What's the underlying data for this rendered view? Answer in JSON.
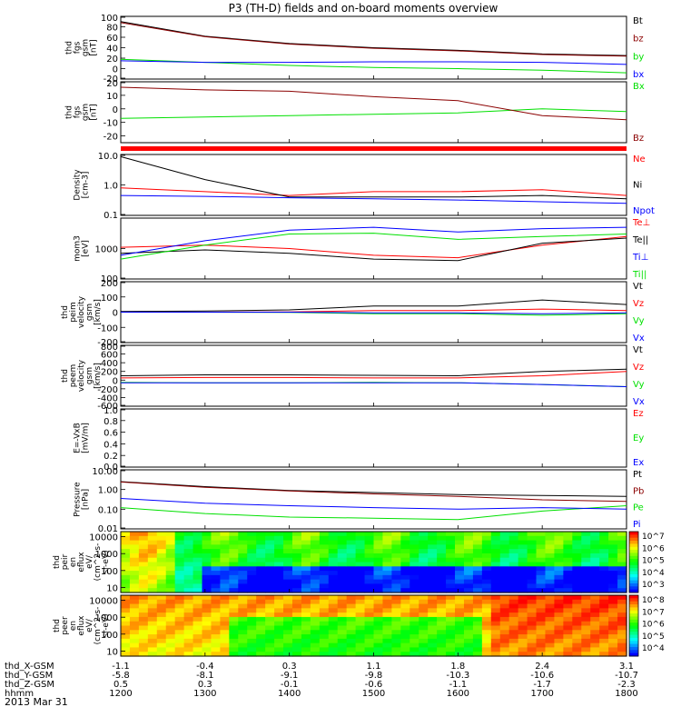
{
  "title": "P3 (TH-D) fields and on-board moments overview",
  "date_label": "2013 Mar 31",
  "bottom_axis": {
    "rows": [
      {
        "name": "thd_X-GSM",
        "values": [
          "-1.1",
          "-0.4",
          "0.3",
          "1.1",
          "1.8",
          "2.4",
          "3.1"
        ]
      },
      {
        "name": "thd_Y-GSM",
        "values": [
          "-5.8",
          "-8.1",
          "-9.1",
          "-9.8",
          "-10.3",
          "-10.6",
          "-10.7"
        ]
      },
      {
        "name": "thd_Z-GSM",
        "values": [
          "0.5",
          "0.3",
          "-0.1",
          "-0.6",
          "-1.1",
          "-1.7",
          "-2.3"
        ]
      },
      {
        "name": "hhmm",
        "values": [
          "1200",
          "1300",
          "1400",
          "1500",
          "1600",
          "1700",
          "1800"
        ]
      }
    ]
  },
  "colors": {
    "black": "#000000",
    "red": "#ff0000",
    "darkred": "#8b0000",
    "green": "#00e000",
    "blue": "#0000ff",
    "flag": "#ff0000"
  },
  "chart_data": [
    {
      "type": "line",
      "ylabel": "thd\nfgs\ngsm\n[nT]",
      "ylim": [
        -20,
        100
      ],
      "yticks": [
        "100",
        "80",
        "60",
        "40",
        "20",
        "0",
        "-20"
      ],
      "series": [
        {
          "name": "Bt",
          "color": "#000000",
          "x": [
            1200,
            1300,
            1400,
            1500,
            1600,
            1700,
            1800
          ],
          "values": [
            90,
            62,
            48,
            40,
            35,
            28,
            25
          ]
        },
        {
          "name": "bz",
          "color": "#8b0000",
          "x": [
            1200,
            1300,
            1400,
            1500,
            1600,
            1700,
            1800
          ],
          "values": [
            88,
            61,
            47,
            39,
            34,
            27,
            24
          ]
        },
        {
          "name": "by",
          "color": "#00e000",
          "x": [
            1200,
            1300,
            1400,
            1500,
            1600,
            1700,
            1800
          ],
          "values": [
            18,
            12,
            6,
            2,
            0,
            -3,
            -8
          ]
        },
        {
          "name": "bx",
          "color": "#0000ff",
          "x": [
            1200,
            1300,
            1400,
            1500,
            1600,
            1700,
            1800
          ],
          "values": [
            15,
            12,
            12,
            13,
            13,
            12,
            8
          ]
        }
      ]
    },
    {
      "type": "line",
      "ylabel": "thd\nfgs\ngsm\n[nT]",
      "ylim": [
        -25,
        20
      ],
      "yticks": [
        "20",
        "10",
        "0",
        "-10",
        "-20"
      ],
      "series": [
        {
          "name": "Bx",
          "color": "#00e000",
          "x": [
            1200,
            1300,
            1400,
            1500,
            1600,
            1700,
            1800
          ],
          "values": [
            -7,
            -6,
            -5,
            -4,
            -3,
            0,
            -2
          ]
        },
        {
          "name": "Bz",
          "color": "#8b0000",
          "x": [
            1200,
            1300,
            1400,
            1500,
            1600,
            1700,
            1800
          ],
          "values": [
            16,
            14,
            13,
            9,
            6,
            -5,
            -8
          ]
        }
      ]
    },
    {
      "type": "line",
      "ylabel": "Density\n[cm-3]",
      "ylim": [
        0.1,
        10
      ],
      "log": true,
      "yticks": [
        "10.0",
        "1.0",
        "0.1"
      ],
      "series": [
        {
          "name": "Ne",
          "color": "#ff0000",
          "x": [
            1200,
            1300,
            1400,
            1500,
            1600,
            1700,
            1800
          ],
          "values": [
            0.8,
            0.6,
            0.45,
            0.6,
            0.6,
            0.7,
            0.45
          ]
        },
        {
          "name": "Ni",
          "color": "#000000",
          "x": [
            1200,
            1300,
            1400,
            1500,
            1600,
            1700,
            1800
          ],
          "values": [
            8.5,
            1.5,
            0.4,
            0.4,
            0.4,
            0.45,
            0.35
          ]
        },
        {
          "name": "Npot",
          "color": "#0000ff",
          "x": [
            1200,
            1300,
            1400,
            1500,
            1600,
            1700,
            1800
          ],
          "values": [
            0.45,
            0.42,
            0.38,
            0.35,
            0.32,
            0.28,
            0.25
          ]
        }
      ]
    },
    {
      "type": "line",
      "ylabel": "mom3\n[eV]",
      "ylim": [
        100,
        10000
      ],
      "log": true,
      "yticks": [
        "1000",
        "100"
      ],
      "series": [
        {
          "name": "Te⊥",
          "color": "#ff0000",
          "x": [
            1200,
            1300,
            1400,
            1500,
            1600,
            1700,
            1800
          ],
          "values": [
            1100,
            1300,
            1000,
            600,
            500,
            1300,
            2500
          ]
        },
        {
          "name": "Te||",
          "color": "#000000",
          "x": [
            1200,
            1300,
            1400,
            1500,
            1600,
            1700,
            1800
          ],
          "values": [
            700,
            900,
            700,
            450,
            400,
            1500,
            2200
          ]
        },
        {
          "name": "Ti⊥",
          "color": "#0000ff",
          "x": [
            1200,
            1300,
            1400,
            1500,
            1600,
            1700,
            1800
          ],
          "values": [
            600,
            1800,
            4000,
            5000,
            3500,
            4500,
            5000
          ]
        },
        {
          "name": "Ti||",
          "color": "#00e000",
          "x": [
            1200,
            1300,
            1400,
            1500,
            1600,
            1700,
            1800
          ],
          "values": [
            450,
            1300,
            3000,
            3200,
            2000,
            2500,
            3000
          ]
        }
      ]
    },
    {
      "type": "line",
      "ylabel": "thd\npeim\nvelocity\ngsm\n[km/s]",
      "ylim": [
        -200,
        200
      ],
      "yticks": [
        "200",
        "100",
        "0",
        "-100",
        "-200"
      ],
      "series": [
        {
          "name": "Vt",
          "color": "#000000",
          "x": [
            1200,
            1300,
            1400,
            1500,
            1600,
            1700,
            1800
          ],
          "values": [
            5,
            8,
            15,
            40,
            40,
            80,
            50
          ]
        },
        {
          "name": "Vz",
          "color": "#ff0000",
          "x": [
            1200,
            1300,
            1400,
            1500,
            1600,
            1700,
            1800
          ],
          "values": [
            0,
            0,
            2,
            10,
            10,
            20,
            10
          ]
        },
        {
          "name": "Vy",
          "color": "#00e000",
          "x": [
            1200,
            1300,
            1400,
            1500,
            1600,
            1700,
            1800
          ],
          "values": [
            0,
            0,
            -2,
            -10,
            -10,
            -20,
            -10
          ]
        },
        {
          "name": "Vx",
          "color": "#0000ff",
          "x": [
            1200,
            1300,
            1400,
            1500,
            1600,
            1700,
            1800
          ],
          "values": [
            0,
            0,
            0,
            -5,
            -5,
            -10,
            -5
          ]
        }
      ]
    },
    {
      "type": "line",
      "ylabel": "thd\npeem\nvelocity\ngsm\n[km/s]",
      "ylim": [
        -600,
        800
      ],
      "yticks": [
        "800",
        "600",
        "400",
        "200",
        "0",
        "-200",
        "-400",
        "-600"
      ],
      "series": [
        {
          "name": "Vt",
          "color": "#000000",
          "x": [
            1200,
            1300,
            1400,
            1500,
            1600,
            1700,
            1800
          ],
          "values": [
            100,
            120,
            120,
            110,
            100,
            200,
            250
          ]
        },
        {
          "name": "Vz",
          "color": "#ff0000",
          "x": [
            1200,
            1300,
            1400,
            1500,
            1600,
            1700,
            1800
          ],
          "values": [
            50,
            60,
            60,
            50,
            50,
            100,
            200
          ]
        },
        {
          "name": "Vy",
          "color": "#00e000",
          "x": [
            1200,
            1300,
            1400,
            1500,
            1600,
            1700,
            1800
          ],
          "values": [
            -50,
            -60,
            -60,
            -50,
            -60,
            -100,
            -150
          ]
        },
        {
          "name": "Vx",
          "color": "#0000ff",
          "x": [
            1200,
            1300,
            1400,
            1500,
            1600,
            1700,
            1800
          ],
          "values": [
            -60,
            -60,
            -60,
            -60,
            -60,
            -100,
            -150
          ]
        }
      ]
    },
    {
      "type": "line",
      "ylabel": "E=-VxB\n[mV/m]",
      "ylim": [
        0,
        1
      ],
      "yticks": [
        "1.0",
        "0.8",
        "0.6",
        "0.4",
        "0.2",
        "0.0"
      ],
      "series": [
        {
          "name": "Ez",
          "color": "#ff0000",
          "x": [],
          "values": []
        },
        {
          "name": "Ey",
          "color": "#00e000",
          "x": [],
          "values": []
        },
        {
          "name": "Ex",
          "color": "#0000ff",
          "x": [],
          "values": []
        }
      ]
    },
    {
      "type": "line",
      "ylabel": "Pressure\n[nPa]",
      "ylim": [
        0.01,
        10
      ],
      "log": true,
      "yticks": [
        "10.00",
        "1.00",
        "0.10",
        "0.01"
      ],
      "series": [
        {
          "name": "Pt",
          "color": "#000000",
          "x": [
            1200,
            1300,
            1400,
            1500,
            1600,
            1700,
            1800
          ],
          "values": [
            2.5,
            1.4,
            0.9,
            0.7,
            0.55,
            0.5,
            0.45
          ]
        },
        {
          "name": "Pb",
          "color": "#8b0000",
          "x": [
            1200,
            1300,
            1400,
            1500,
            1600,
            1700,
            1800
          ],
          "values": [
            2.4,
            1.3,
            0.85,
            0.6,
            0.45,
            0.3,
            0.25
          ]
        },
        {
          "name": "Pe",
          "color": "#00e000",
          "x": [
            1200,
            1300,
            1400,
            1500,
            1600,
            1700,
            1800
          ],
          "values": [
            0.12,
            0.06,
            0.04,
            0.035,
            0.03,
            0.08,
            0.15
          ]
        },
        {
          "name": "Pi",
          "color": "#0000ff",
          "x": [
            1200,
            1300,
            1400,
            1500,
            1600,
            1700,
            1800
          ],
          "values": [
            0.35,
            0.2,
            0.15,
            0.12,
            0.1,
            0.12,
            0.1
          ]
        }
      ]
    },
    {
      "type": "heatmap",
      "ylabel": "thd\npeir\nen\neflux\neV/\n(cm^2-s-\nsr-eV)",
      "ylim": [
        5,
        20000
      ],
      "log": true,
      "yticks": [
        "10000",
        "1000",
        "100",
        "10"
      ],
      "colorbar_ticks": [
        "10^7",
        "10^6",
        "10^5",
        "10^4",
        "10^3"
      ]
    },
    {
      "type": "heatmap",
      "ylabel": "thd\npeer\nen\neflux\neV/\n(cm^2-s-\nsr-eV)",
      "ylim": [
        5,
        20000
      ],
      "log": true,
      "yticks": [
        "10000",
        "1000",
        "100",
        "10"
      ],
      "colorbar_ticks": [
        "10^8",
        "10^7",
        "10^6",
        "10^5",
        "10^4"
      ]
    }
  ]
}
